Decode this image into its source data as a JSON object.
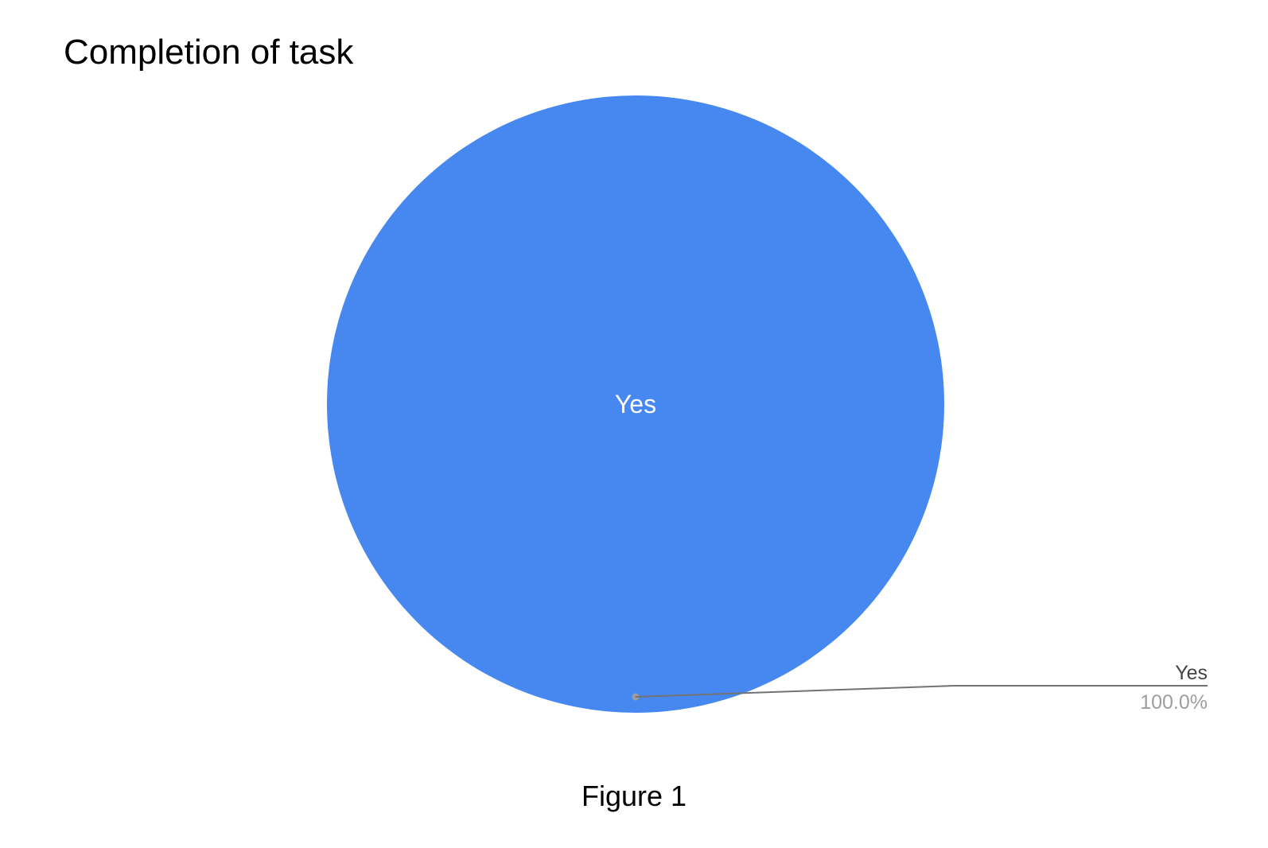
{
  "figure": {
    "caption": "Figure 1"
  },
  "chart_data": {
    "type": "pie",
    "title": "Completion of task",
    "slices": [
      {
        "label": "Yes",
        "value": 100.0,
        "percent_label": "100.0%",
        "color": "#4788F0"
      }
    ],
    "legend": "none",
    "callout_color": "#737373"
  }
}
